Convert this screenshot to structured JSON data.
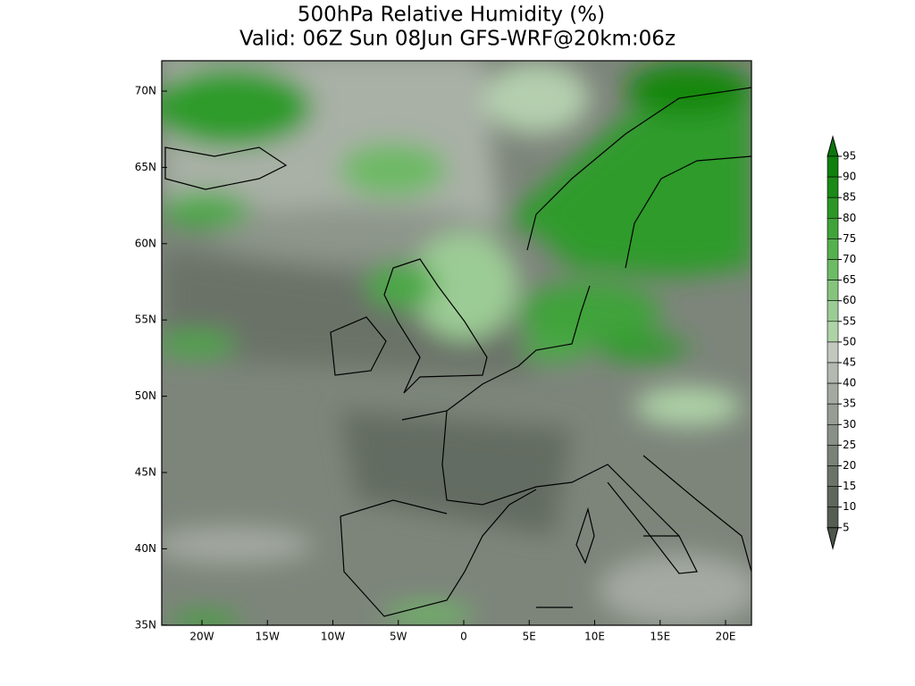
{
  "title": [
    "500hPa Relative Humidity (%)",
    "Valid: 06Z Sun 08Jun GFS-WRF@20km:06z"
  ],
  "map": {
    "lat_labels": [
      "70N",
      "65N",
      "60N",
      "55N",
      "50N",
      "45N",
      "40N",
      "35N"
    ],
    "lon_labels": [
      "20W",
      "15W",
      "10W",
      "5W",
      "0",
      "5E",
      "10E",
      "15E",
      "20E"
    ]
  },
  "colorbar": {
    "labels": [
      "95",
      "90",
      "85",
      "80",
      "75",
      "70",
      "65",
      "60",
      "55",
      "50",
      "45",
      "40",
      "35",
      "30",
      "25",
      "20",
      "15",
      "10",
      "5"
    ]
  }
}
